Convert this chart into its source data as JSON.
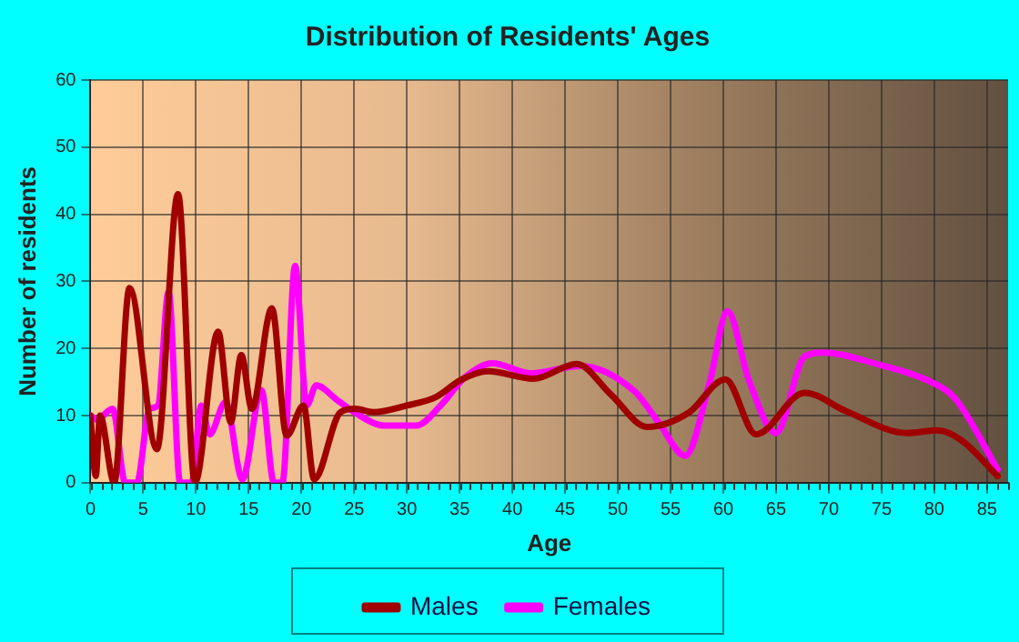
{
  "chart_data": {
    "type": "line",
    "title": "Distribution of Residents' Ages",
    "xlabel": "Age",
    "ylabel": "Number of residents",
    "xlim": [
      0,
      87
    ],
    "xticks": [
      0,
      5,
      10,
      15,
      20,
      25,
      30,
      35,
      40,
      45,
      50,
      55,
      60,
      65,
      70,
      75,
      80,
      85
    ],
    "ylim": [
      0,
      60
    ],
    "yticks": [
      0,
      10,
      20,
      30,
      40,
      50,
      60
    ],
    "grid": true,
    "legend": "bottom",
    "marker": "none",
    "series": [
      {
        "name": "Males",
        "color": "#a00000",
        "x": [
          0,
          0.5,
          0.9,
          2.25,
          3.7,
          6.3,
          8.3,
          9.9,
          12.1,
          13.3,
          14.3,
          15.3,
          17.2,
          18.6,
          20.2,
          21.2,
          23.7,
          25.1,
          26.8,
          30,
          32.8,
          35.1,
          37.7,
          42,
          46.1,
          49.3,
          52.8,
          56.7,
          60.2,
          63.1,
          67.7,
          71.7,
          77.4,
          80.3,
          82.6,
          86
        ],
        "values": [
          10,
          1,
          10,
          0,
          29,
          5,
          43,
          0,
          22.5,
          9,
          19,
          11,
          26,
          7,
          11.5,
          0.5,
          10.5,
          11,
          10.5,
          11.5,
          12.8,
          15.3,
          16.6,
          15.5,
          17.7,
          13.2,
          8.3,
          10.4,
          15.4,
          7.2,
          13.4,
          10.6,
          7.4,
          7.8,
          6.3,
          1
        ]
      },
      {
        "name": "Females",
        "color": "#ff00ff",
        "x": [
          0,
          0.6,
          2.1,
          3.3,
          4.4,
          5.6,
          6.4,
          7.4,
          8.5,
          9.6,
          10.5,
          11.3,
          12.8,
          14.4,
          16.2,
          17.4,
          18.2,
          19.4,
          20.5,
          21.4,
          23.4,
          25.1,
          27.9,
          30.9,
          33.2,
          35.5,
          38.1,
          41.8,
          46.4,
          51.6,
          53.9,
          56.4,
          58.7,
          60.4,
          62.4,
          65,
          67.7,
          69.4,
          74.5,
          79.7,
          82,
          86
        ],
        "values": [
          10,
          9.4,
          11,
          0,
          0,
          11,
          11.5,
          28.4,
          0,
          0,
          11.5,
          7.2,
          12,
          0.5,
          13.8,
          0,
          0,
          32.3,
          11.5,
          14.5,
          12.3,
          10.4,
          8.5,
          8.5,
          11.5,
          15.7,
          17.8,
          16.3,
          17.4,
          13.6,
          8.9,
          4,
          14.9,
          25.5,
          15.4,
          7.4,
          18.8,
          19.4,
          17.7,
          15,
          12.5,
          2
        ]
      }
    ]
  }
}
